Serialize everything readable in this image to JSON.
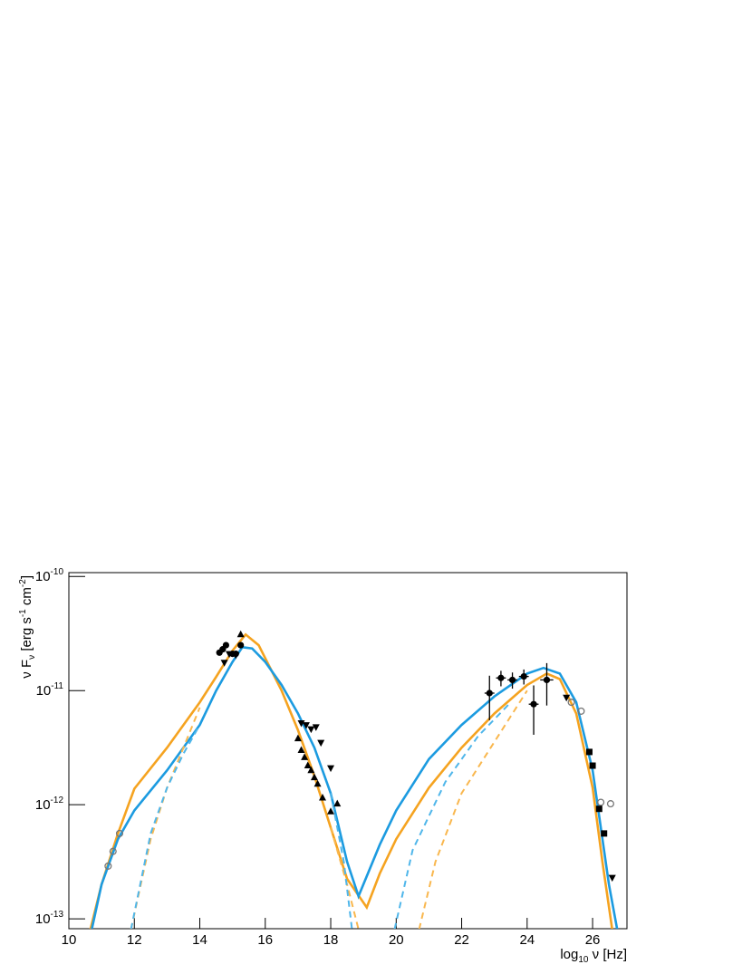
{
  "chart_data": {
    "type": "line",
    "log_y": true,
    "xlim": [
      10,
      27.05
    ],
    "ylim": [
      8.2e-14,
      1.08e-10
    ],
    "xticks": [
      10,
      12,
      14,
      16,
      18,
      20,
      22,
      24,
      26
    ],
    "yticks": [
      {
        "value": 1e-13,
        "label": "10",
        "exponent": "-13"
      },
      {
        "value": 1e-12,
        "label": "10",
        "exponent": "-12"
      },
      {
        "value": 1e-11,
        "label": "10",
        "exponent": "-11"
      },
      {
        "value": 1e-10,
        "label": "10",
        "exponent": "-10"
      }
    ],
    "x_label": [
      {
        "text": "log"
      },
      {
        "text": "10",
        "sub": true
      },
      {
        "text": " ν [Hz]"
      }
    ],
    "y_label": [
      {
        "text": "ν F"
      },
      {
        "text": "ν",
        "sub": true
      },
      {
        "text": " [erg s"
      },
      {
        "text": "-1",
        "sup": true
      },
      {
        "text": " cm"
      },
      {
        "text": "-2",
        "sup": true
      },
      {
        "text": "]"
      }
    ],
    "series": [
      {
        "color": "#f5a320",
        "dashed": false,
        "x": [
          10.66,
          11,
          11.5,
          12,
          13,
          14,
          14.5,
          15,
          15.4,
          15.8,
          16.5,
          17,
          17.5,
          18,
          18.5,
          19.1,
          19.5,
          20,
          21,
          22,
          23,
          24,
          24.6,
          25,
          25.5,
          26,
          26.3,
          26.6
        ],
        "values": [
          8.1e-14,
          2e-13,
          5.6e-13,
          1.38e-12,
          3.16e-12,
          7.9e-12,
          1.32e-11,
          2.24e-11,
          3.1e-11,
          2.5e-11,
          1e-11,
          4.5e-12,
          1.78e-12,
          6.3e-13,
          2.24e-13,
          1.26e-13,
          2.5e-13,
          5e-13,
          1.41e-12,
          3.16e-12,
          6.3e-12,
          1.12e-11,
          1.41e-11,
          1.26e-11,
          6.3e-12,
          1.41e-12,
          3.16e-13,
          8.1e-14
        ]
      },
      {
        "color": "#1c9be0",
        "dashed": false,
        "x": [
          10.7,
          11,
          11.5,
          12,
          13,
          14,
          14.5,
          15,
          15.3,
          15.6,
          16,
          16.5,
          17,
          17.5,
          18,
          18.5,
          18.85,
          19.5,
          20,
          21,
          22,
          23,
          24,
          24.5,
          25,
          25.5,
          26,
          26.5,
          26.75
        ],
        "values": [
          8.1e-14,
          2e-13,
          5e-13,
          8.9e-13,
          2e-12,
          5e-12,
          1e-11,
          1.78e-11,
          2.4e-11,
          2.34e-11,
          1.78e-11,
          1.12e-11,
          6.3e-12,
          3.16e-12,
          1.26e-12,
          3.16e-13,
          1.58e-13,
          4.47e-13,
          8.9e-13,
          2.51e-12,
          5e-12,
          8.9e-12,
          1.41e-11,
          1.58e-11,
          1.41e-11,
          7.9e-12,
          2e-12,
          2e-13,
          8.1e-14
        ]
      },
      {
        "color": "#f9b74e",
        "dashed": true,
        "x": [
          11.9,
          12.5,
          13,
          13.5,
          14,
          16,
          18.0,
          18.5,
          18.85,
          19.5,
          20.7,
          21.2,
          22,
          23,
          24
        ],
        "values": [
          8.1e-14,
          5e-13,
          1.41e-12,
          3.16e-12,
          7.1e-12,
          null,
          6.3e-13,
          2e-13,
          8.1e-14,
          null,
          8.1e-14,
          3.16e-13,
          1.26e-12,
          3.55e-12,
          1e-11
        ]
      },
      {
        "color": "#4fb6ea",
        "dashed": true,
        "x": [
          11.9,
          12.5,
          13,
          13.5,
          14,
          16,
          18.0,
          18.4,
          18.65,
          19.3,
          19.95,
          20.5,
          21.5,
          22.5,
          23.5
        ],
        "values": [
          8.1e-14,
          5.6e-13,
          1.41e-12,
          2.8e-12,
          5e-12,
          null,
          1.26e-12,
          3.16e-13,
          8.1e-14,
          null,
          8.1e-14,
          4e-13,
          1.58e-12,
          3.98e-12,
          7.9e-12
        ]
      }
    ],
    "points": [
      {
        "marker": "open-circle",
        "color": "#777777",
        "x": [
          11.2,
          11.35,
          11.55
        ],
        "values": [
          2.9e-13,
          3.9e-13,
          5.6e-13
        ]
      },
      {
        "marker": "circle",
        "color": "#000000",
        "x": [
          14.6,
          14.7,
          14.8,
          15.0,
          15.1,
          15.25
        ],
        "values": [
          2.15e-11,
          2.3e-11,
          2.5e-11,
          2.1e-11,
          2.1e-11,
          2.5e-11
        ]
      },
      {
        "marker": "triangle-up",
        "color": "#000000",
        "x": [
          15.25,
          17.0,
          17.1,
          17.2,
          17.3,
          17.4,
          17.5,
          17.6,
          17.75,
          18.0,
          18.2
        ],
        "values": [
          3.1e-11,
          3.8e-12,
          3e-12,
          2.6e-12,
          2.2e-12,
          2e-12,
          1.73e-12,
          1.52e-12,
          1.15e-12,
          8.7e-13,
          1.02e-12
        ]
      },
      {
        "marker": "triangle-down",
        "color": "#000000",
        "x": [
          14.75,
          14.9,
          15.1,
          17.1,
          17.25,
          17.4,
          17.55,
          17.7,
          18.0,
          25.2,
          26.6
        ],
        "values": [
          1.76e-11,
          2.1e-11,
          2.05e-11,
          5.2e-12,
          5e-12,
          4.6e-12,
          4.8e-12,
          3.5e-12,
          2.1e-12,
          8.7e-12,
          2.3e-13
        ]
      },
      {
        "marker": "circle",
        "color": "#000000",
        "x": [
          22.85,
          23.2,
          23.55,
          23.9,
          24.2,
          24.6
        ],
        "values": [
          9.5e-12,
          1.29e-11,
          1.24e-11,
          1.33e-11,
          7.6e-12,
          1.24e-11
        ],
        "xerr": [
          0.15,
          0.15,
          0.15,
          0.15,
          0.15,
          0.2
        ],
        "yerr": [
          4e-12,
          2e-12,
          2e-12,
          2e-12,
          3.5e-12,
          5e-12
        ]
      },
      {
        "marker": "open-circle",
        "color": "#777777",
        "x": [
          25.35,
          25.65,
          26.25,
          26.55
        ],
        "values": [
          7.9e-12,
          6.6e-12,
          1.05e-12,
          1.02e-12
        ]
      },
      {
        "marker": "square",
        "color": "#000000",
        "x": [
          25.9,
          26.0,
          26.2,
          26.35
        ],
        "values": [
          2.9e-12,
          2.2e-12,
          9.2e-13,
          5.6e-13
        ]
      }
    ]
  }
}
